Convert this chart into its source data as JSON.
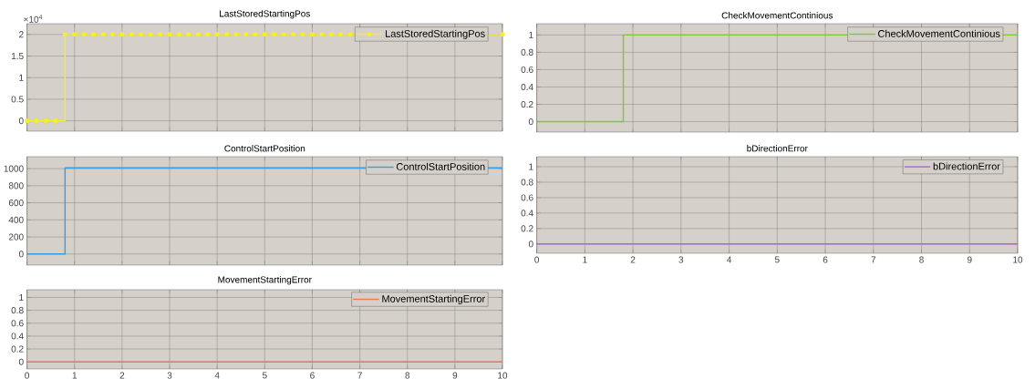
{
  "chart_data": [
    {
      "type": "step",
      "title": "LastStoredStartingPos",
      "annotations": [
        "×10$^{4}$"
      ],
      "marker": "circle",
      "grid": true,
      "legend": "top right",
      "tick_labels": "y",
      "x": [
        0,
        0.2,
        0.4,
        0.6,
        0.8,
        1,
        1.2,
        1.4,
        1.6,
        1.8,
        2,
        2.2,
        2.4,
        2.6,
        2.8,
        3,
        3.2,
        3.4,
        3.6,
        3.8,
        4,
        4.2,
        4.4,
        4.6,
        4.8,
        5,
        5.2,
        5.4,
        5.6,
        5.8,
        6,
        6.2,
        6.4,
        6.6,
        6.8,
        7,
        7.2,
        7.4,
        7.6,
        7.8,
        8,
        8.2,
        8.4,
        8.6,
        8.8,
        9,
        9.2,
        9.4,
        9.6,
        9.8,
        10
      ],
      "series": [
        {
          "name": "LastStoredStartingPos",
          "color": "#f5f020",
          "values": [
            0,
            0,
            0,
            0,
            2,
            2,
            2,
            2,
            2,
            2,
            2,
            2,
            2,
            2,
            2,
            2,
            2,
            2,
            2,
            2,
            2,
            2,
            2,
            2,
            2,
            2,
            2,
            2,
            2,
            2,
            2,
            2,
            2,
            2,
            2,
            null,
            null,
            null,
            null,
            null,
            null,
            null,
            null,
            null,
            null,
            null,
            null,
            null,
            null,
            null,
            2
          ]
        }
      ],
      "xlim": [
        0,
        10
      ],
      "xticks": [
        0,
        1,
        2,
        3,
        4,
        5,
        6,
        7,
        8,
        9,
        10
      ],
      "ylim": [
        -0.24,
        2.25
      ],
      "yticks": [
        0,
        0.5,
        1,
        1.5,
        2
      ]
    },
    {
      "type": "step",
      "title": "CheckMovementContinious",
      "grid": true,
      "legend": "top right",
      "tick_labels": "y",
      "x": [
        0,
        1.8,
        10
      ],
      "series": [
        {
          "name": "CheckMovementContinious",
          "color": "#77cc33",
          "values": [
            0,
            1,
            1
          ]
        }
      ],
      "xlim": [
        0,
        10
      ],
      "xticks": [
        0,
        1,
        2,
        3,
        4,
        5,
        6,
        7,
        8,
        9,
        10
      ],
      "ylim": [
        -0.12,
        1.13
      ],
      "yticks": [
        0,
        0.2,
        0.4,
        0.6,
        0.8,
        1
      ]
    },
    {
      "type": "step",
      "title": "ControlStartPosition",
      "grid": true,
      "legend": "top right",
      "tick_labels": "y",
      "x": [
        0,
        0.8,
        10
      ],
      "series": [
        {
          "name": "ControlStartPosition",
          "color": "#3a9ee0",
          "values": [
            0,
            1010,
            1010
          ]
        }
      ],
      "xlim": [
        0,
        10
      ],
      "xticks": [
        0,
        1,
        2,
        3,
        4,
        5,
        6,
        7,
        8,
        9,
        10
      ],
      "ylim": [
        -130,
        1140
      ],
      "yticks": [
        0,
        200,
        400,
        600,
        800,
        1000
      ]
    },
    {
      "type": "step",
      "title": "bDirectionError",
      "grid": true,
      "legend": "top right",
      "x": [
        0,
        10
      ],
      "series": [
        {
          "name": "bDirectionError",
          "color": "#b560e0",
          "values": [
            0,
            0
          ]
        }
      ],
      "xlim": [
        0,
        10
      ],
      "xticks": [
        0,
        1,
        2,
        3,
        4,
        5,
        6,
        7,
        8,
        9,
        10
      ],
      "ylim": [
        -0.12,
        1.13
      ],
      "yticks": [
        0,
        0.2,
        0.4,
        0.6,
        0.8,
        1
      ]
    },
    {
      "type": "step",
      "title": "MovementStartingError",
      "grid": true,
      "legend": "top right",
      "x": [
        0,
        10
      ],
      "series": [
        {
          "name": "MovementStartingError",
          "color": "#f07850",
          "values": [
            0,
            0
          ]
        }
      ],
      "xlim": [
        0,
        10
      ],
      "xticks": [
        0,
        1,
        2,
        3,
        4,
        5,
        6,
        7,
        8,
        9,
        10
      ],
      "ylim": [
        -0.11,
        1.12
      ],
      "yticks": [
        0,
        0.2,
        0.4,
        0.6,
        0.8,
        1
      ]
    }
  ]
}
